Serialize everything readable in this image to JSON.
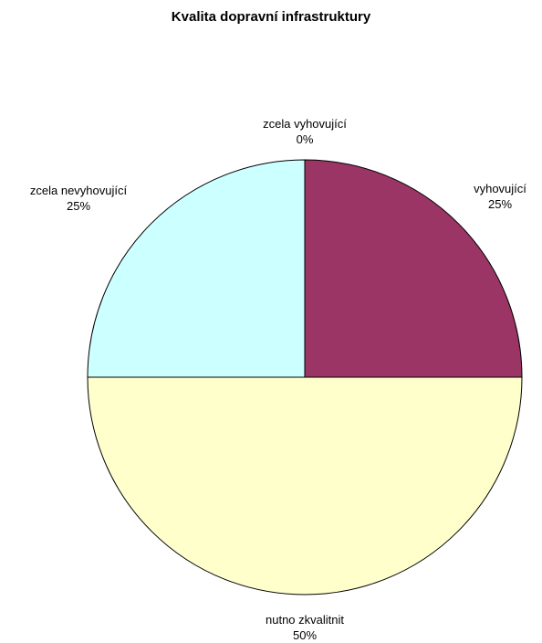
{
  "chart_data": {
    "type": "pie",
    "title": "Kvalita dopravní infrastruktury",
    "slices": [
      {
        "label": "zcela vyhovující",
        "value": 0,
        "percent_label": "0%",
        "color": "#9b3565"
      },
      {
        "label": "vyhovující",
        "value": 25,
        "percent_label": "25%",
        "color": "#9b3565"
      },
      {
        "label": "nutno zkvalitnit",
        "value": 50,
        "percent_label": "50%",
        "color": "#ffffcc"
      },
      {
        "label": "zcela nevyhovující",
        "value": 25,
        "percent_label": "25%",
        "color": "#ccffff"
      }
    ]
  }
}
